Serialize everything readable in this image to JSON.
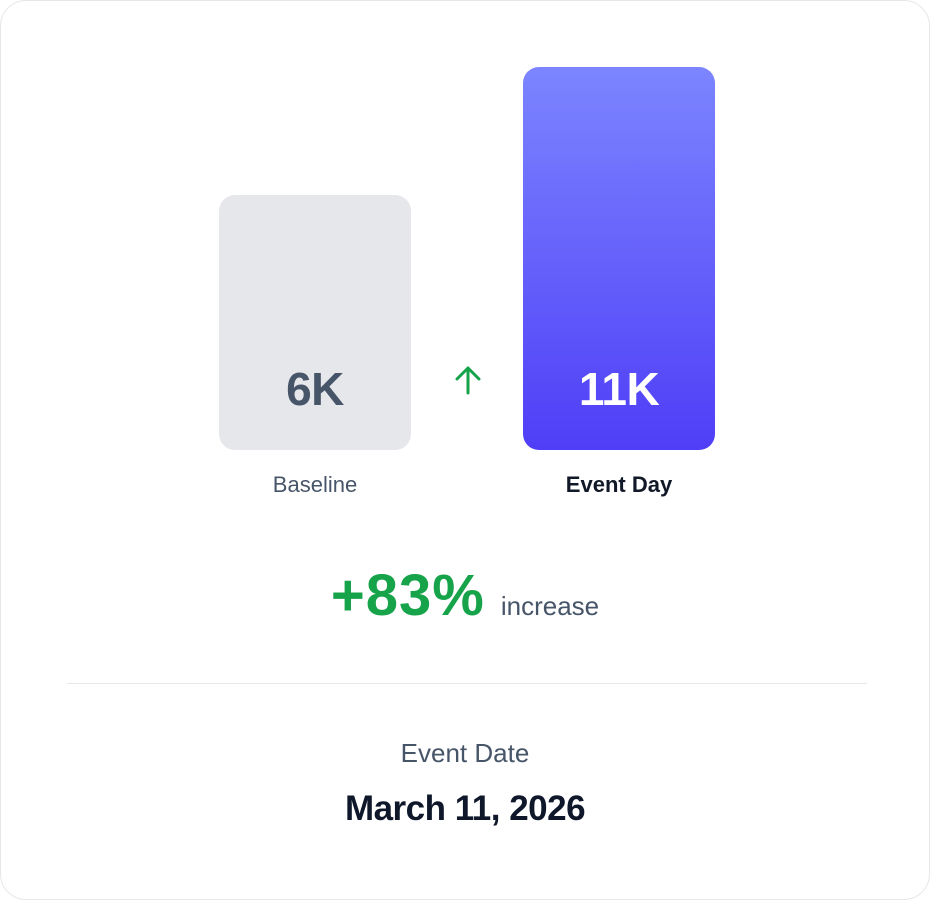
{
  "chart_data": {
    "type": "bar",
    "categories": [
      "Baseline",
      "Event Day"
    ],
    "values": [
      6000,
      11000
    ],
    "value_labels": [
      "6K",
      "11K"
    ],
    "ylim": [
      0,
      11000
    ],
    "grid": false,
    "legend": "none",
    "colors": {
      "baseline_bar": "#e5e7eb",
      "baseline_text": "#475569",
      "event_bar_top": "#7c85ff",
      "event_bar_bottom": "#4f3ef7",
      "event_text": "#ffffff",
      "baseline_label": "#475569",
      "event_label": "#111827"
    }
  },
  "change": {
    "value": "+83%",
    "label": "increase",
    "color": "#16a34a",
    "icon": "arrow-up-icon"
  },
  "event": {
    "label": "Event Date",
    "date": "March 11, 2026"
  }
}
